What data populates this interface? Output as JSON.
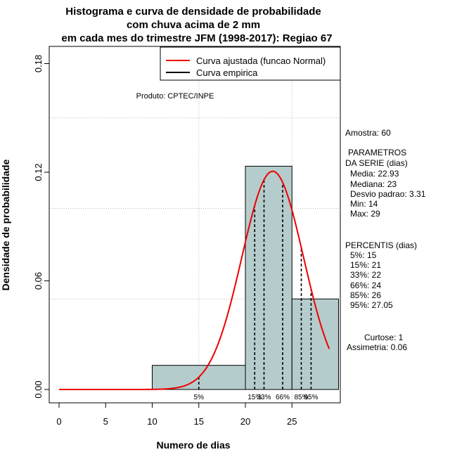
{
  "chart_data": {
    "type": "bar",
    "title_lines": [
      "Histograma e curva de densidade de probabilidade",
      "com chuva acima de 2 mm",
      "em cada mes do trimestre JFM (1998-2017): Regiao 67"
    ],
    "xlabel": "Numero de dias",
    "ylabel": "Densidade de probabilidade",
    "xlim": [
      -1,
      30
    ],
    "ylim": [
      0,
      0.18
    ],
    "x_ticks": [
      "0",
      "5",
      "10",
      "15",
      "20",
      "25"
    ],
    "x_tick_values": [
      0,
      5,
      10,
      15,
      20,
      25
    ],
    "y_ticks": [
      "0.00",
      "0.06",
      "0.12",
      "0.18"
    ],
    "y_tick_values": [
      0,
      0.06,
      0.12,
      0.18
    ],
    "grid_x_values": [
      15,
      25
    ],
    "grid_y_values": [
      0.05,
      0.1,
      0.15
    ],
    "bins": [
      {
        "from": 10,
        "to": 20,
        "density": 0.01333
      },
      {
        "from": 20,
        "to": 25,
        "density": 0.12333
      },
      {
        "from": 25,
        "to": 30,
        "density": 0.05
      }
    ],
    "bar_color": "#b5cccc",
    "curve_color": "#ee0000",
    "normal_fit": {
      "mean": 22.93,
      "sd": 3.31,
      "x_from": 0,
      "x_to": 29
    },
    "percentile_lines": [
      {
        "label": "5%",
        "x": 15
      },
      {
        "label": "15%",
        "x": 21
      },
      {
        "label": "33%",
        "x": 22
      },
      {
        "label": "66%",
        "x": 24
      },
      {
        "label": "85%",
        "x": 26
      },
      {
        "label": "95%",
        "x": 27.05
      }
    ],
    "legend": {
      "position": "top-right",
      "entries": [
        {
          "label": "Curva ajustada (funcao Normal)",
          "color": "#ee0000"
        },
        {
          "label": "Curva empirica",
          "color": "#000000"
        }
      ]
    },
    "product_label": "Produto: CPTEC/INPE",
    "stats_lines": [
      "Amostra: 60",
      "PARAMETROS",
      "DA SERIE (dias)",
      "Media: 22.93",
      "Mediana: 23",
      "Desvio padrao: 3.31",
      "Min: 14",
      "Max: 29",
      "PERCENTIS (dias)",
      "5%: 15",
      "15%: 21",
      "33%: 22",
      "66%: 24",
      "85%: 26",
      "95%: 27.05",
      "Curtose: 1",
      "Assimetria: 0.06"
    ]
  }
}
